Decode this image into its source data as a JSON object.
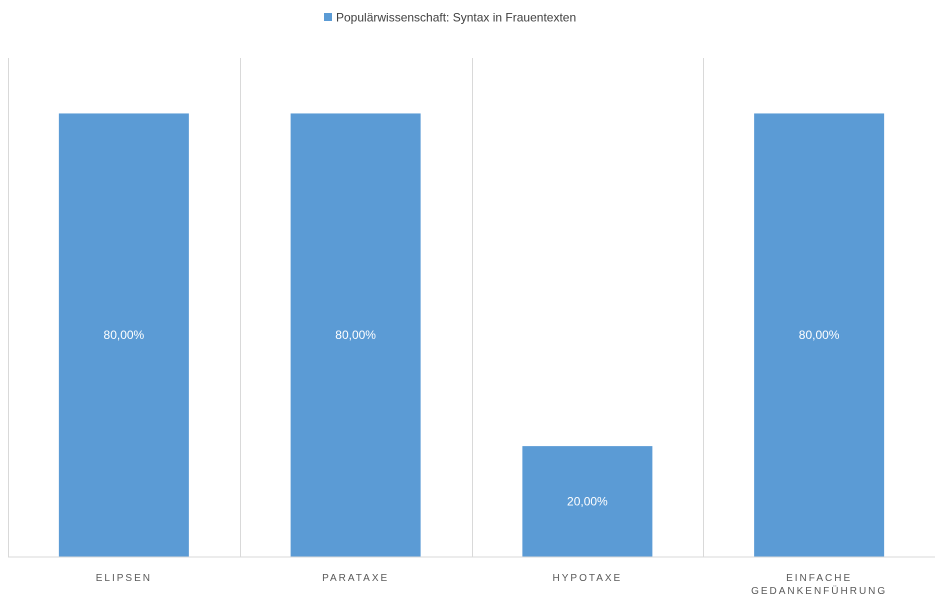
{
  "chart_data": {
    "type": "bar",
    "legend_position": "top",
    "grid": true,
    "series": [
      {
        "name": "Populärwissenschaft: Syntax in Frauentexten",
        "values": [
          80,
          80,
          20,
          80
        ],
        "data_labels": [
          "80,00%",
          "80,00%",
          "20,00%",
          "80,00%"
        ]
      }
    ],
    "categories": [
      [
        "ELIPSEN"
      ],
      [
        "PARATAXE"
      ],
      [
        "HYPOTAXE"
      ],
      [
        "EINFACHE",
        "GEDANKENFÜHRUNG"
      ]
    ],
    "ylim": [
      0,
      90
    ],
    "colors": {
      "bar": "#5b9bd5",
      "grid": "#d9d9d9",
      "axis": "#d9d9d9",
      "label": "#595959"
    }
  }
}
